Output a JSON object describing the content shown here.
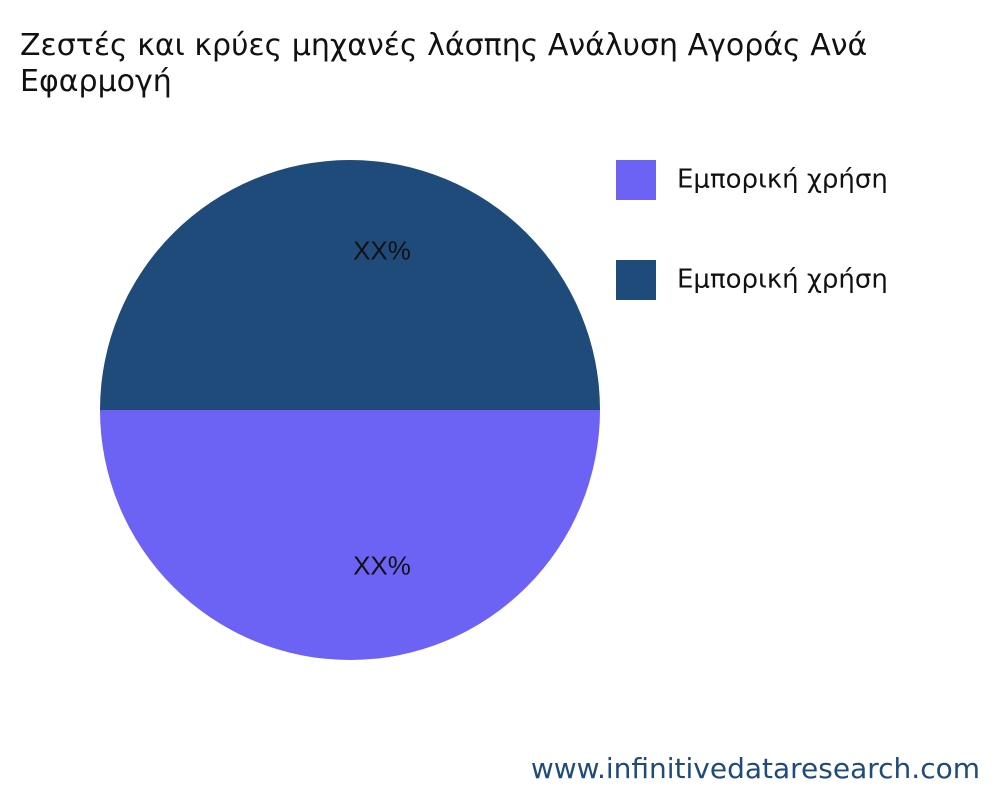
{
  "chart_data": {
    "type": "pie",
    "title": "Ζεστές και κρύες μηχανές λάσπης Ανάλυση Αγοράς Ανά Εφαρμογή",
    "categories": [
      "Εμπορική χρήση",
      "Εμπορική χρήση"
    ],
    "values": [
      50,
      50
    ],
    "value_labels": [
      "XX%",
      "XX%"
    ],
    "colors": [
      "#6c63f5",
      "#1f4b7a"
    ],
    "legend": "top-right",
    "source": "www.infinitivedataresearch.com"
  }
}
